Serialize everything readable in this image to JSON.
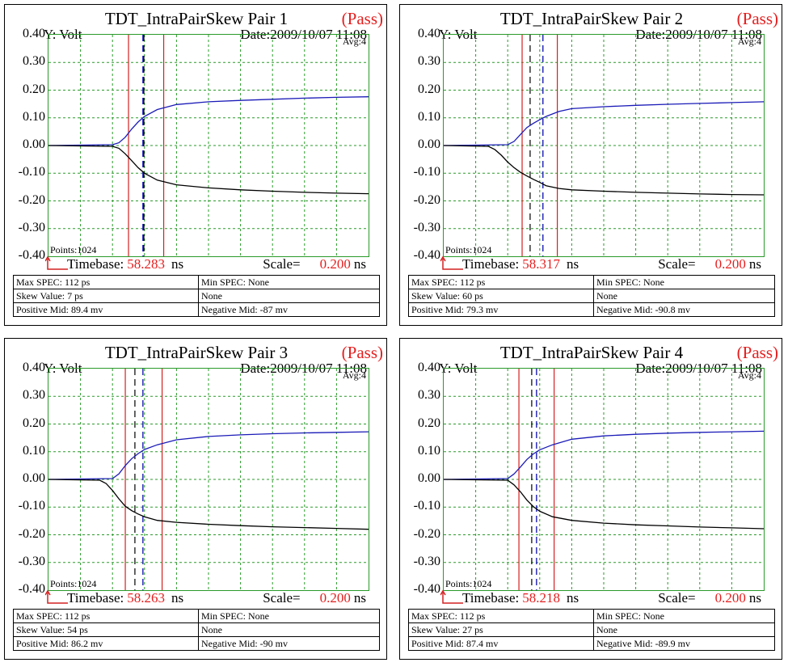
{
  "shared": {
    "y_label": "Y: Volt",
    "date": "Date:2009/10/07 11:08",
    "avg": "Avg:4",
    "points": "Points:1024",
    "timebase_label": "Timebase:",
    "scale_label": "Scale=",
    "unit": "ns",
    "y_ticks": [
      "0.40",
      "0.30",
      "0.20",
      "0.10",
      "0.00",
      "-0.10",
      "-0.20",
      "-0.30",
      "-0.40"
    ],
    "colors": {
      "positive": "#1b1bb8",
      "negative": "#000000",
      "grid": "#2a9a2a",
      "marker": "#d42020",
      "red_text": "#e51e1e"
    }
  },
  "chart_data": [
    {
      "type": "line",
      "title": "TDT_IntraPairSkew Pair 1",
      "status": "(Pass)",
      "ylim": [
        -0.4,
        0.4
      ],
      "grid": true,
      "timebase": "58.283",
      "scale": "0.200",
      "markers": {
        "red": [
          0.25,
          0.36
        ],
        "blue_dashed": 0.295,
        "black_dashed": 0.298
      },
      "series": [
        {
          "x": [
            0,
            0.2,
            0.22,
            0.24,
            0.26,
            0.28,
            0.3,
            0.34,
            0.4,
            0.5,
            0.6,
            0.7,
            0.8,
            0.9,
            1.0
          ],
          "values": [
            0,
            0.003,
            0.01,
            0.03,
            0.06,
            0.085,
            0.105,
            0.13,
            0.148,
            0.158,
            0.163,
            0.167,
            0.171,
            0.174,
            0.176
          ]
        },
        {
          "x": [
            0,
            0.2,
            0.22,
            0.24,
            0.26,
            0.28,
            0.3,
            0.34,
            0.4,
            0.5,
            0.6,
            0.7,
            0.8,
            0.9,
            1.0
          ],
          "values": [
            0,
            -0.003,
            -0.01,
            -0.03,
            -0.055,
            -0.08,
            -0.1,
            -0.125,
            -0.142,
            -0.153,
            -0.16,
            -0.165,
            -0.169,
            -0.172,
            -0.174
          ]
        }
      ],
      "table": [
        [
          "Max SPEC: 112 ps",
          "Min SPEC: None"
        ],
        [
          "Skew Value: 7 ps",
          "None"
        ],
        [
          "Positive Mid: 89.4 mv",
          "Negative Mid: -87 mv"
        ]
      ]
    },
    {
      "type": "line",
      "title": "TDT_IntraPairSkew Pair 2",
      "status": "(Pass)",
      "ylim": [
        -0.4,
        0.4
      ],
      "grid": true,
      "timebase": "58.317",
      "scale": "0.200",
      "markers": {
        "red": [
          0.245,
          0.355
        ],
        "blue_dashed": 0.31,
        "black_dashed": 0.27
      },
      "series": [
        {
          "x": [
            0,
            0.2,
            0.22,
            0.24,
            0.26,
            0.28,
            0.3,
            0.32,
            0.36,
            0.4,
            0.5,
            0.6,
            0.7,
            0.8,
            0.9,
            1.0
          ],
          "values": [
            0,
            0.003,
            0.015,
            0.04,
            0.065,
            0.08,
            0.093,
            0.105,
            0.123,
            0.133,
            0.14,
            0.145,
            0.149,
            0.152,
            0.155,
            0.158
          ]
        },
        {
          "x": [
            0,
            0.14,
            0.16,
            0.18,
            0.2,
            0.22,
            0.24,
            0.26,
            0.28,
            0.3,
            0.32,
            0.36,
            0.4,
            0.5,
            0.6,
            0.7,
            0.8,
            0.9,
            1.0
          ],
          "values": [
            0,
            -0.003,
            -0.015,
            -0.035,
            -0.06,
            -0.08,
            -0.097,
            -0.11,
            -0.122,
            -0.133,
            -0.145,
            -0.155,
            -0.16,
            -0.165,
            -0.169,
            -0.172,
            -0.175,
            -0.177,
            -0.178
          ]
        }
      ],
      "table": [
        [
          "Max SPEC: 112 ps",
          "Min SPEC: None"
        ],
        [
          "Skew Value: 60 ps",
          "None"
        ],
        [
          "Positive Mid: 79.3 mv",
          "Negative Mid: -90.8 mv"
        ]
      ]
    },
    {
      "type": "line",
      "title": "TDT_IntraPairSkew Pair 3",
      "status": "(Pass)",
      "ylim": [
        -0.4,
        0.4
      ],
      "grid": true,
      "timebase": "58.263",
      "scale": "0.200",
      "markers": {
        "red": [
          0.24,
          0.355
        ],
        "blue_dashed": 0.295,
        "black_dashed": 0.27
      },
      "series": [
        {
          "x": [
            0,
            0.2,
            0.22,
            0.24,
            0.26,
            0.28,
            0.3,
            0.34,
            0.4,
            0.5,
            0.6,
            0.7,
            0.8,
            0.9,
            1.0
          ],
          "values": [
            0,
            0.003,
            0.02,
            0.05,
            0.075,
            0.093,
            0.108,
            0.125,
            0.143,
            0.155,
            0.161,
            0.165,
            0.168,
            0.17,
            0.172
          ]
        },
        {
          "x": [
            0,
            0.16,
            0.18,
            0.2,
            0.22,
            0.24,
            0.26,
            0.28,
            0.3,
            0.34,
            0.4,
            0.5,
            0.6,
            0.7,
            0.8,
            0.9,
            1.0
          ],
          "values": [
            0,
            -0.003,
            -0.015,
            -0.04,
            -0.07,
            -0.097,
            -0.113,
            -0.125,
            -0.135,
            -0.148,
            -0.155,
            -0.162,
            -0.167,
            -0.171,
            -0.174,
            -0.177,
            -0.18
          ]
        }
      ],
      "table": [
        [
          "Max SPEC: 112 ps",
          "Min SPEC: None"
        ],
        [
          "Skew Value: 54 ps",
          "None"
        ],
        [
          "Positive Mid: 86.2 mv",
          "Negative Mid: -90 mv"
        ]
      ]
    },
    {
      "type": "line",
      "title": "TDT_IntraPairSkew Pair 4",
      "status": "(Pass)",
      "ylim": [
        -0.4,
        0.4
      ],
      "grid": true,
      "timebase": "58.218",
      "scale": "0.200",
      "markers": {
        "red": [
          0.235,
          0.345
        ],
        "blue_dashed": 0.29,
        "black_dashed": 0.275
      },
      "series": [
        {
          "x": [
            0,
            0.2,
            0.22,
            0.24,
            0.26,
            0.28,
            0.3,
            0.34,
            0.4,
            0.5,
            0.6,
            0.7,
            0.8,
            0.9,
            1.0
          ],
          "values": [
            0,
            0.003,
            0.02,
            0.045,
            0.072,
            0.092,
            0.107,
            0.125,
            0.145,
            0.157,
            0.163,
            0.167,
            0.17,
            0.172,
            0.174
          ]
        },
        {
          "x": [
            0,
            0.2,
            0.22,
            0.24,
            0.26,
            0.28,
            0.3,
            0.34,
            0.4,
            0.5,
            0.6,
            0.7,
            0.8,
            0.9,
            1.0
          ],
          "values": [
            0,
            -0.003,
            -0.02,
            -0.045,
            -0.075,
            -0.098,
            -0.115,
            -0.135,
            -0.148,
            -0.158,
            -0.164,
            -0.168,
            -0.172,
            -0.175,
            -0.178
          ]
        }
      ],
      "table": [
        [
          "Max SPEC: 112 ps",
          "Min SPEC: None"
        ],
        [
          "Skew Value: 27 ps",
          "None"
        ],
        [
          "Positive Mid: 87.4 mv",
          "Negative Mid: -89.9 mv"
        ]
      ]
    }
  ]
}
